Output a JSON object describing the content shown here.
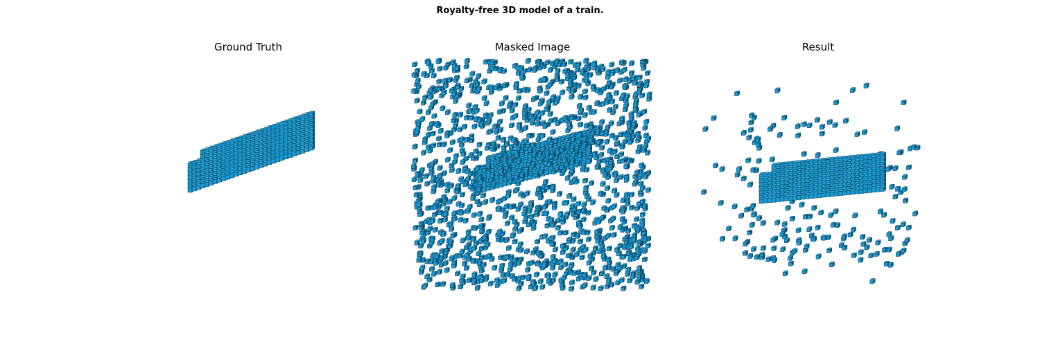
{
  "figure": {
    "title": "Royalty-free 3D model of a train."
  },
  "panels": [
    {
      "title": "Ground Truth"
    },
    {
      "title": "Masked Image"
    },
    {
      "title": "Result"
    }
  ],
  "colors": {
    "voxel_face": "#1b9bd1",
    "voxel_top": "#2aa8dc",
    "voxel_side": "#0b5f82",
    "voxel_edge": "#0a3550"
  }
}
